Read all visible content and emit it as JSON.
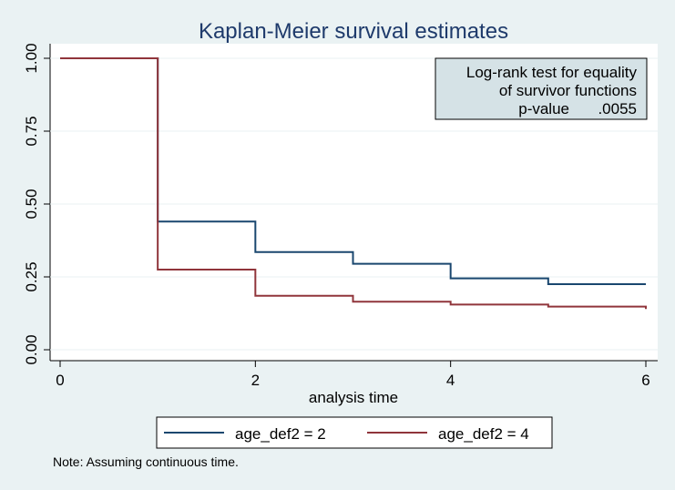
{
  "chart_data": {
    "type": "line",
    "step": true,
    "title": "Kaplan-Meier survival estimates",
    "xlabel": "analysis time",
    "ylabel": "",
    "xlim": [
      0,
      6
    ],
    "ylim": [
      0,
      1
    ],
    "x_ticks": [
      0,
      2,
      4,
      6
    ],
    "x_tick_labels": [
      "0",
      "2",
      "4",
      "6"
    ],
    "y_ticks": [
      0,
      0.25,
      0.5,
      0.75,
      1
    ],
    "y_tick_labels": [
      "0.00",
      "0.25",
      "0.50",
      "0.75",
      "1.00"
    ],
    "grid": true,
    "legend_position": "bottom",
    "annotation": {
      "lines": [
        "Log-rank test for equality",
        "of survivor functions"
      ],
      "pvalue_label": "p-value",
      "pvalue": ".0055"
    },
    "note": "Note: Assuming continuous time.",
    "series": [
      {
        "name": "age_def2 = 2",
        "color": "#1a476f",
        "x": [
          0,
          1,
          2,
          3,
          4,
          5,
          6
        ],
        "y": [
          1.0,
          0.44,
          0.335,
          0.295,
          0.245,
          0.225,
          0.225
        ]
      },
      {
        "name": "age_def2 = 4",
        "color": "#90353b",
        "x": [
          0,
          1,
          2,
          3,
          4,
          5,
          6
        ],
        "y": [
          1.0,
          0.275,
          0.185,
          0.165,
          0.155,
          0.148,
          0.14
        ]
      }
    ]
  }
}
